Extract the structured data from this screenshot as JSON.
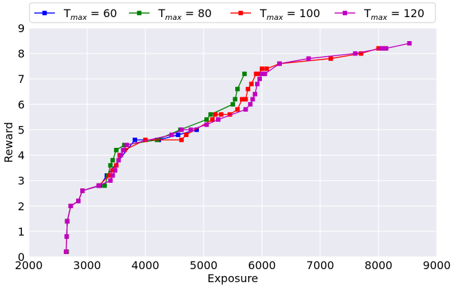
{
  "chart_data": {
    "type": "line",
    "xlabel": "Exposure",
    "ylabel": "Reward",
    "xlim": [
      2000,
      9000
    ],
    "ylim": [
      0,
      9
    ],
    "xticks": [
      2000,
      3000,
      4000,
      5000,
      6000,
      7000,
      8000,
      9000
    ],
    "yticks": [
      0,
      1,
      2,
      3,
      4,
      5,
      6,
      7,
      8,
      9
    ],
    "grid": true,
    "legend_position": "top",
    "background": "#EAEAF2",
    "series": [
      {
        "name": "T",
        "name_sub": "max",
        "name_suffix": " = 60",
        "color": "#0000FF",
        "x": [
          2650,
          2660,
          2720,
          2850,
          2920,
          3220,
          3340,
          3820,
          4230,
          4560,
          4880
        ],
        "y": [
          0.8,
          1.4,
          2.0,
          2.2,
          2.6,
          2.8,
          3.2,
          4.6,
          4.6,
          4.8,
          5.0
        ]
      },
      {
        "name": "T",
        "name_sub": "max",
        "name_suffix": " = 80",
        "color": "#008000",
        "x": [
          2650,
          2660,
          2720,
          2850,
          2920,
          3200,
          3300,
          3360,
          3400,
          3440,
          3500,
          3640,
          4200,
          4600,
          5050,
          5120,
          5500,
          5540,
          5580,
          5700
        ],
        "y": [
          0.8,
          1.4,
          2.0,
          2.2,
          2.6,
          2.8,
          2.8,
          3.2,
          3.6,
          3.8,
          4.2,
          4.4,
          4.6,
          5.0,
          5.4,
          5.6,
          6.0,
          6.2,
          6.6,
          7.2
        ],
        "points_only": [
          [
            2650,
            0.2
          ]
        ]
      },
      {
        "name": "T",
        "name_sub": "max",
        "name_suffix": " = 100",
        "color": "#FF0000",
        "x": [
          2640,
          2650,
          2660,
          2720,
          2850,
          2920,
          3200,
          3380,
          3440,
          3500,
          3560,
          3640,
          4000,
          4620,
          4700,
          5150,
          5200,
          5300,
          5450,
          5580,
          5660,
          5720,
          5760,
          5820,
          5900,
          5950,
          6000,
          6080,
          6300,
          7180,
          7700,
          8000,
          8100
        ],
        "y": [
          0.2,
          0.8,
          1.4,
          2.0,
          2.2,
          2.6,
          2.8,
          3.2,
          3.4,
          3.6,
          4.0,
          4.2,
          4.6,
          4.6,
          4.8,
          5.4,
          5.6,
          5.6,
          5.6,
          5.8,
          6.2,
          6.2,
          6.6,
          6.8,
          7.2,
          7.2,
          7.4,
          7.4,
          7.6,
          7.8,
          8.0,
          8.2,
          8.2
        ]
      },
      {
        "name": "T",
        "name_sub": "max",
        "name_suffix": " = 120",
        "color": "#C000C0",
        "x": [
          2640,
          2650,
          2660,
          2720,
          2850,
          2920,
          3200,
          3400,
          3440,
          3480,
          3540,
          3580,
          3620,
          3680,
          4450,
          4620,
          4780,
          5050,
          5250,
          5720,
          5800,
          5840,
          5880,
          5920,
          5960,
          6000,
          6050,
          6300,
          6800,
          7600,
          8050,
          8130,
          8530
        ],
        "y": [
          0.2,
          0.8,
          1.4,
          2.0,
          2.2,
          2.6,
          2.8,
          3.0,
          3.2,
          3.4,
          3.8,
          4.0,
          4.2,
          4.4,
          4.8,
          5.0,
          5.0,
          5.2,
          5.4,
          5.8,
          6.0,
          6.2,
          6.4,
          6.8,
          7.0,
          7.2,
          7.2,
          7.6,
          7.8,
          8.0,
          8.2,
          8.2,
          8.4
        ]
      }
    ]
  }
}
